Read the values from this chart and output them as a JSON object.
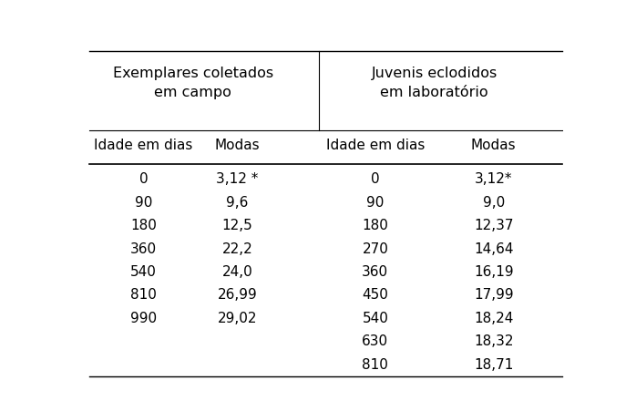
{
  "header1": "Exemplares coletados\nem campo",
  "header2": "Juvenis eclodidos\nem laboratório",
  "col_headers": [
    "Idade em dias",
    "Modas",
    "Idade em dias",
    "Modas"
  ],
  "campo_data": [
    [
      "0",
      "3,12 *"
    ],
    [
      "90",
      "9,6"
    ],
    [
      "180",
      "12,5"
    ],
    [
      "360",
      "22,2"
    ],
    [
      "540",
      "24,0"
    ],
    [
      "810",
      "26,99"
    ],
    [
      "990",
      "29,02"
    ]
  ],
  "lab_data": [
    [
      "0",
      "3,12*"
    ],
    [
      "90",
      "9,0"
    ],
    [
      "180",
      "12,37"
    ],
    [
      "270",
      "14,64"
    ],
    [
      "360",
      "16,19"
    ],
    [
      "450",
      "17,99"
    ],
    [
      "540",
      "18,24"
    ],
    [
      "630",
      "18,32"
    ],
    [
      "810",
      "18,71"
    ]
  ],
  "bg_color": "#ffffff",
  "text_color": "#000000",
  "font_size": 11,
  "header_font_size": 11.5
}
